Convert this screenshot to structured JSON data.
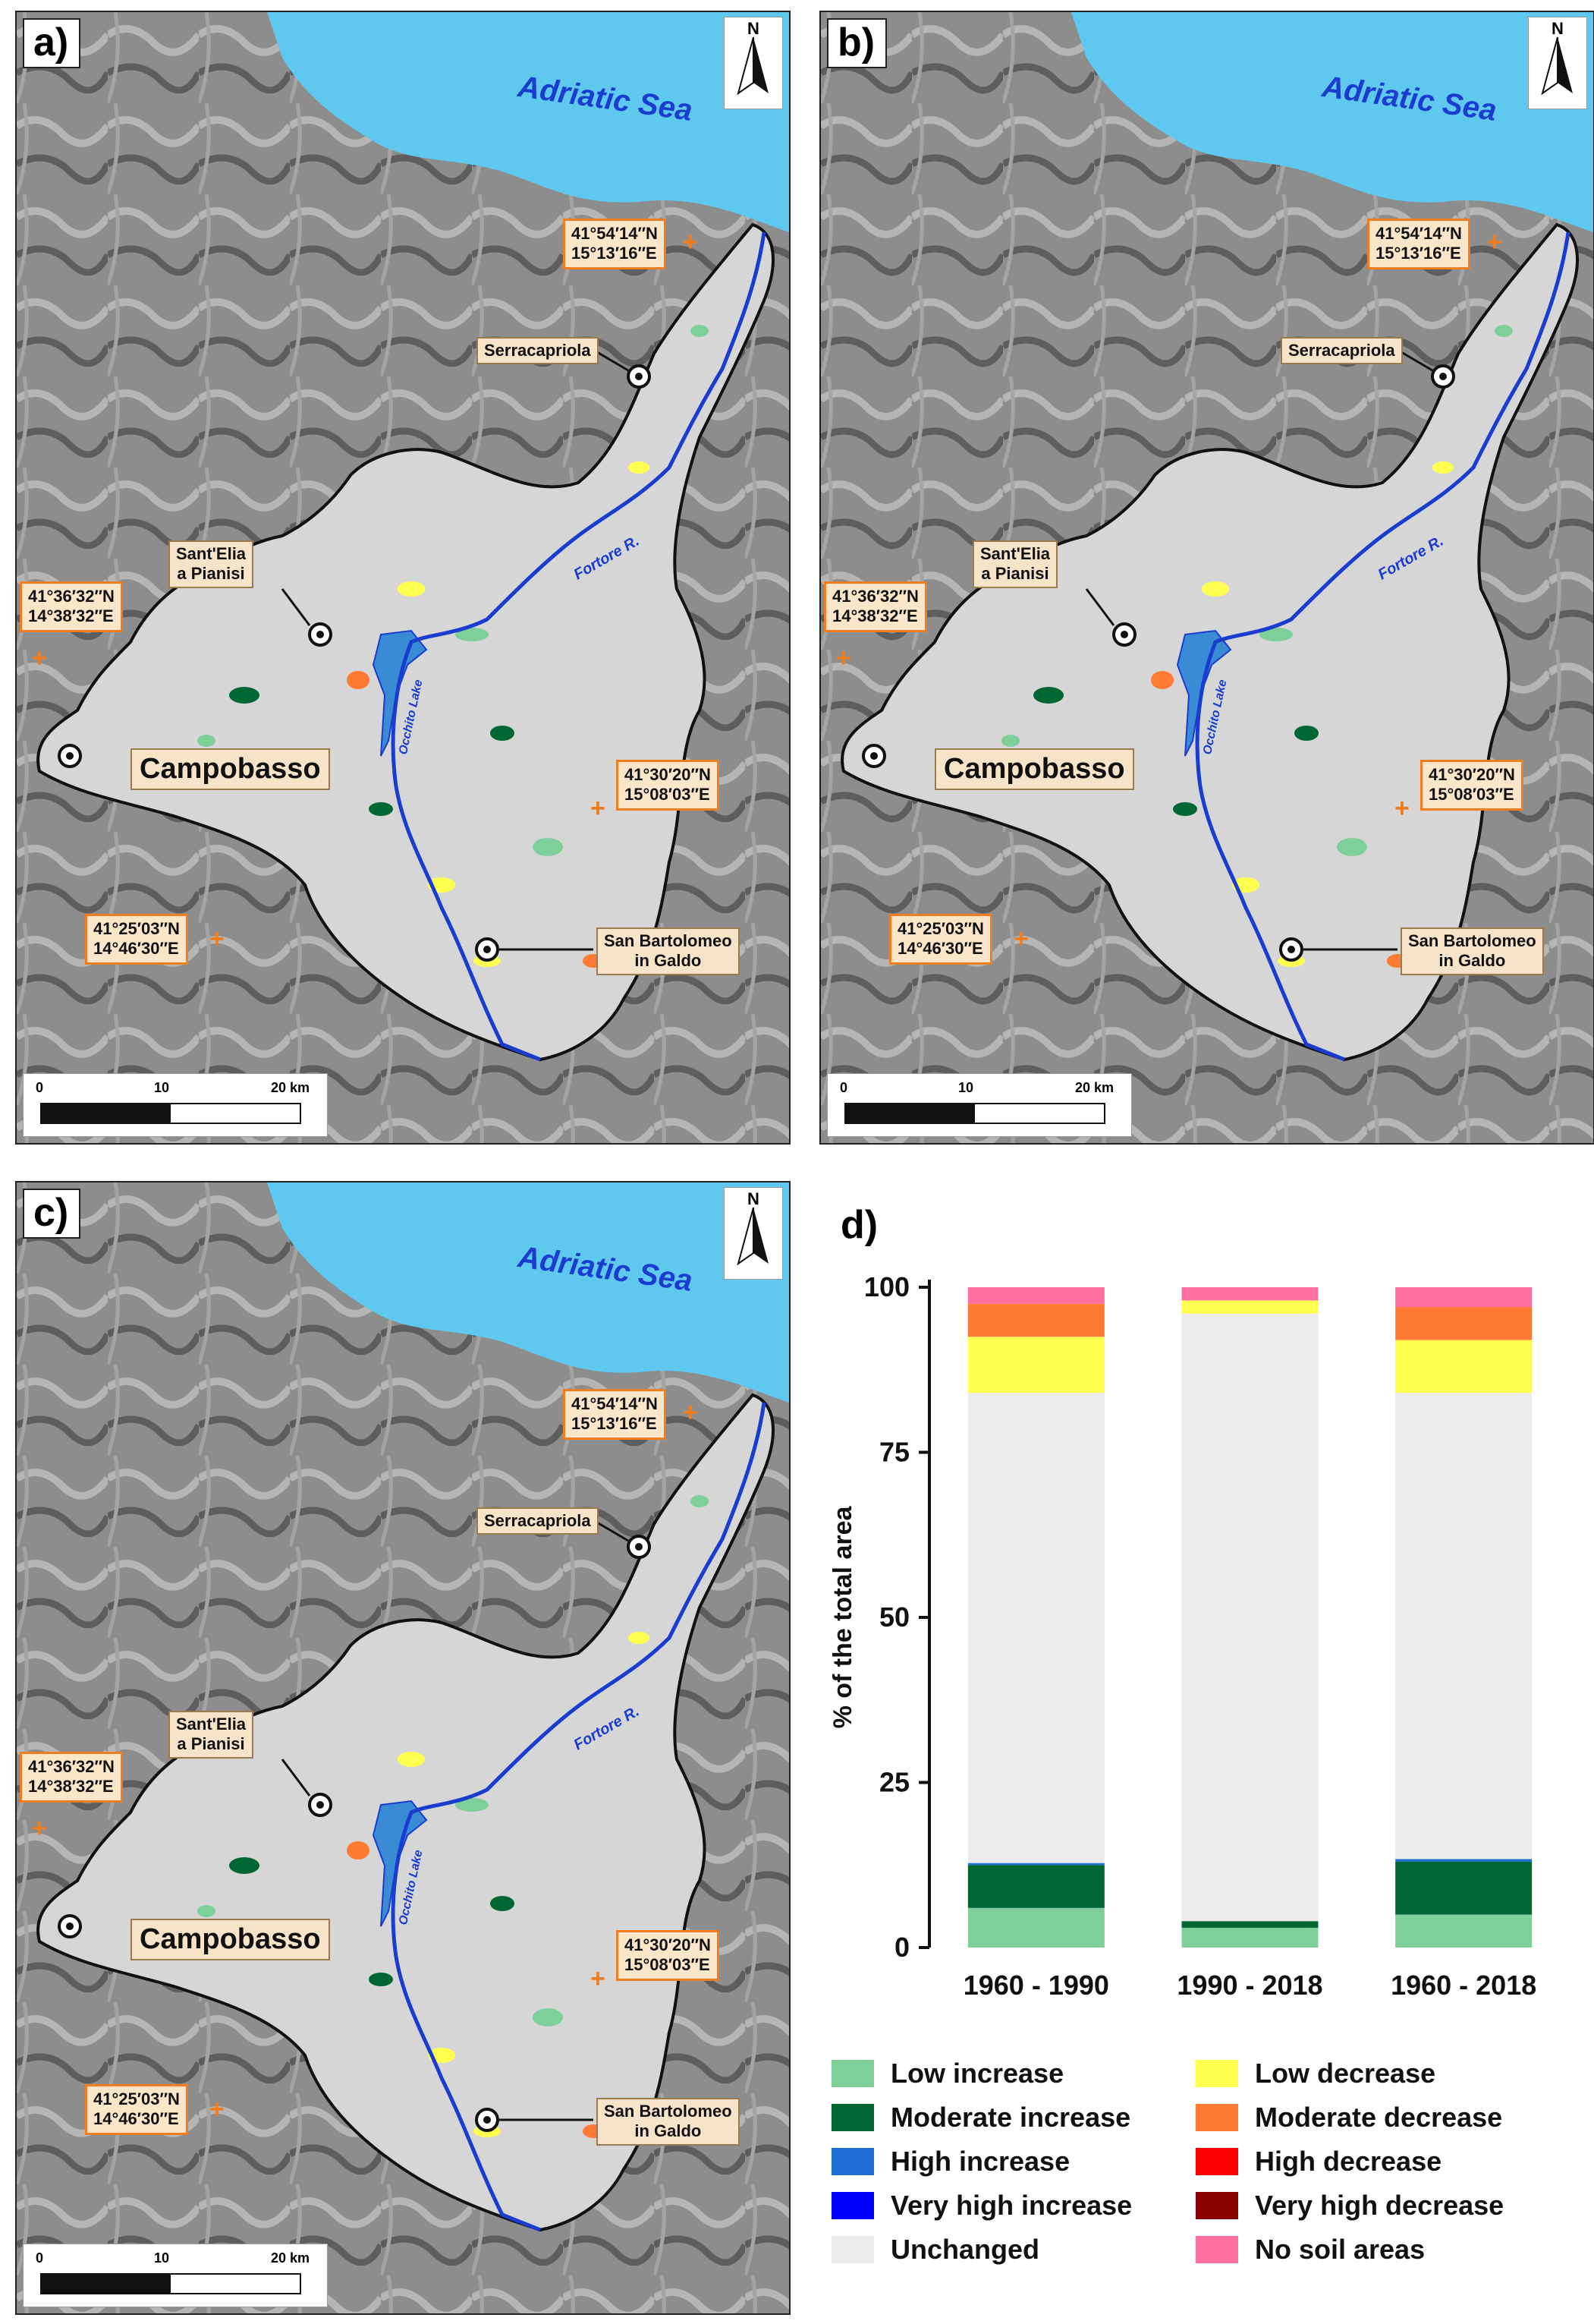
{
  "panels": [
    {
      "label": "a)"
    },
    {
      "label": "b)"
    },
    {
      "label": "c)"
    }
  ],
  "map": {
    "north": "N",
    "sea": "Adriatic Sea",
    "coords": {
      "ne_lat": "41°54′14″N",
      "ne_lon": "15°13′16″E",
      "w_lat": "41°36′32″N",
      "w_lon": "14°38′32″E",
      "e_lat": "41°30′20″N",
      "e_lon": "15°08′03″E",
      "sw_lat": "41°25′03″N",
      "sw_lon": "14°46′30″E"
    },
    "towns": {
      "serracapriola": "Serracapriola",
      "santelia_1": "Sant'Elia",
      "santelia_2": "a Pianisi",
      "campobasso": "Campobasso",
      "sanbart_1": "San Bartolomeo",
      "sanbart_2": "in Galdo"
    },
    "river": "Fortore R.",
    "lake": "Occhito Lake",
    "scale": {
      "t0": "0",
      "t1": "10",
      "t2": "20 km"
    }
  },
  "chart_panel_label": "d)",
  "chart_data": {
    "type": "bar",
    "stacked": true,
    "categories": [
      "1960 - 1990",
      "1990 - 2018",
      "1960 - 2018"
    ],
    "ylabel": "% of the total area",
    "ylim": [
      0,
      100
    ],
    "yticks": [
      "0",
      "25",
      "50",
      "75",
      "100"
    ],
    "series": [
      {
        "name": "Low increase",
        "color": "#7fcf9a",
        "values": [
          6,
          3,
          5
        ]
      },
      {
        "name": "Moderate increase",
        "color": "#006634",
        "values": [
          6.5,
          1,
          8
        ]
      },
      {
        "name": "High increase",
        "color": "#1f6fd6",
        "values": [
          0.3,
          0,
          0.4
        ]
      },
      {
        "name": "Very high increase",
        "color": "#0000ff",
        "values": [
          0,
          0,
          0
        ]
      },
      {
        "name": "Unchanged",
        "color": "#ececec",
        "values": [
          71.2,
          92,
          70.6
        ]
      },
      {
        "name": "Low decrease",
        "color": "#ffff50",
        "values": [
          8.5,
          2,
          8
        ]
      },
      {
        "name": "Moderate decrease",
        "color": "#ff7a33",
        "values": [
          5,
          0,
          5
        ]
      },
      {
        "name": "High decrease",
        "color": "#ff0000",
        "values": [
          0,
          0,
          0
        ]
      },
      {
        "name": "Very high decrease",
        "color": "#8b0000",
        "values": [
          0,
          0,
          0
        ]
      },
      {
        "name": "No soil areas",
        "color": "#ff6f9f",
        "values": [
          2.5,
          2,
          3
        ]
      }
    ]
  },
  "legend": [
    {
      "label": "Low increase",
      "color": "#7fcf9a"
    },
    {
      "label": "Moderate increase",
      "color": "#006634"
    },
    {
      "label": "High increase",
      "color": "#1f6fd6"
    },
    {
      "label": "Very high increase",
      "color": "#0000ff"
    },
    {
      "label": "Unchanged",
      "color": "#ececec"
    },
    {
      "label": "Low decrease",
      "color": "#ffff50"
    },
    {
      "label": "Moderate decrease",
      "color": "#ff7a33"
    },
    {
      "label": "High decrease",
      "color": "#ff0000"
    },
    {
      "label": "Very high decrease",
      "color": "#8b0000"
    },
    {
      "label": "No soil areas",
      "color": "#ff6f9f"
    }
  ]
}
